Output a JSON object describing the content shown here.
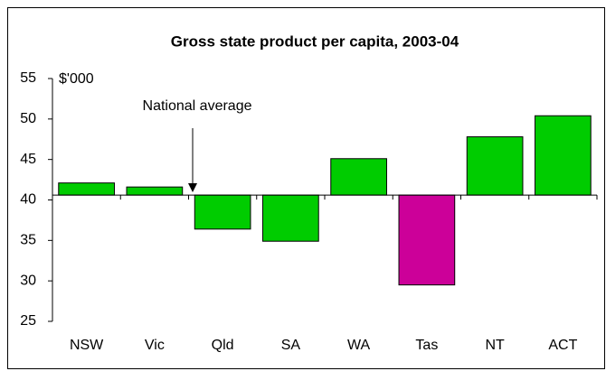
{
  "chart_data": {
    "type": "bar",
    "title": "Gross state product per capita, 2003-04",
    "y_unit_label": "$'000",
    "annotation": "National average",
    "categories": [
      "NSW",
      "Vic",
      "Qld",
      "SA",
      "WA",
      "Tas",
      "NT",
      "ACT"
    ],
    "values": [
      42.1,
      41.6,
      36.4,
      34.9,
      45.1,
      29.5,
      47.8,
      50.4
    ],
    "colors": [
      "#00cc00",
      "#00cc00",
      "#00cc00",
      "#00cc00",
      "#00cc00",
      "#cc0099",
      "#00cc00",
      "#00cc00"
    ],
    "baseline": 40.6,
    "ylim": [
      25,
      55
    ],
    "yticks": [
      25,
      30,
      35,
      40,
      45,
      50,
      55
    ],
    "grid": false
  }
}
